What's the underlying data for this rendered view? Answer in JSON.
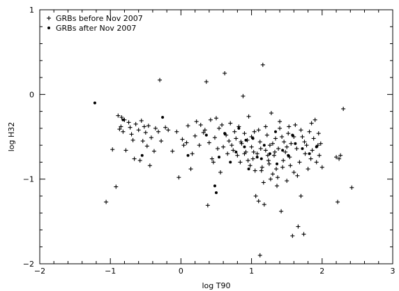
{
  "chart_data": {
    "type": "scatter",
    "title": "",
    "xlabel": "log T90",
    "ylabel": "log H32",
    "xlim": [
      -2,
      3
    ],
    "ylim": [
      -2,
      1
    ],
    "x_ticks": [
      -2,
      -1,
      0,
      1,
      2,
      3
    ],
    "y_ticks": [
      -2,
      -1,
      0,
      1
    ],
    "x_tick_labels": [
      "−2",
      "−1",
      "0",
      "1",
      "2",
      "3"
    ],
    "y_tick_labels": [
      "−2",
      "−1",
      "0",
      "1"
    ],
    "legend_position": "top-left",
    "series": [
      {
        "name": "GRBs before Nov 2007",
        "marker": "plus",
        "points": [
          [
            -1.06,
            -1.27
          ],
          [
            -0.97,
            -0.65
          ],
          [
            -0.92,
            -1.09
          ],
          [
            -0.89,
            -0.25
          ],
          [
            -0.87,
            -0.41
          ],
          [
            -0.85,
            -0.38
          ],
          [
            -0.84,
            -0.27
          ],
          [
            -0.82,
            -0.44
          ],
          [
            -0.8,
            -0.3
          ],
          [
            -0.78,
            -0.66
          ],
          [
            -0.74,
            -0.33
          ],
          [
            -0.72,
            -0.39
          ],
          [
            -0.7,
            -0.47
          ],
          [
            -0.68,
            -0.54
          ],
          [
            -0.66,
            -0.76
          ],
          [
            -0.64,
            -0.35
          ],
          [
            -0.6,
            -0.42
          ],
          [
            -0.58,
            -0.78
          ],
          [
            -0.56,
            -0.31
          ],
          [
            -0.54,
            -0.55
          ],
          [
            -0.52,
            -0.38
          ],
          [
            -0.5,
            -0.45
          ],
          [
            -0.48,
            -0.61
          ],
          [
            -0.46,
            -0.37
          ],
          [
            -0.44,
            -0.84
          ],
          [
            -0.42,
            -0.51
          ],
          [
            -0.38,
            -0.67
          ],
          [
            -0.36,
            -0.4
          ],
          [
            -0.32,
            -0.44
          ],
          [
            -0.3,
            0.17
          ],
          [
            -0.28,
            -0.55
          ],
          [
            -0.22,
            -0.39
          ],
          [
            -0.18,
            -0.42
          ],
          [
            -0.12,
            -0.67
          ],
          [
            -0.06,
            -0.44
          ],
          [
            -0.03,
            -0.98
          ],
          [
            0.02,
            -0.53
          ],
          [
            0.04,
            -0.6
          ],
          [
            0.08,
            -0.57
          ],
          [
            0.1,
            -0.37
          ],
          [
            0.14,
            -0.88
          ],
          [
            0.16,
            -0.7
          ],
          [
            0.2,
            -0.49
          ],
          [
            0.22,
            -0.32
          ],
          [
            0.26,
            -0.6
          ],
          [
            0.28,
            -0.36
          ],
          [
            0.32,
            -0.45
          ],
          [
            0.34,
            -0.42
          ],
          [
            0.36,
            0.15
          ],
          [
            0.38,
            -1.31
          ],
          [
            0.4,
            -0.57
          ],
          [
            0.42,
            -0.3
          ],
          [
            0.44,
            -0.76
          ],
          [
            0.46,
            -0.8
          ],
          [
            0.48,
            -0.51
          ],
          [
            0.5,
            -0.28
          ],
          [
            0.52,
            -0.64
          ],
          [
            0.54,
            -0.4
          ],
          [
            0.56,
            -0.92
          ],
          [
            0.58,
            -0.36
          ],
          [
            0.6,
            -0.62
          ],
          [
            0.62,
            0.25
          ],
          [
            0.64,
            -0.48
          ],
          [
            0.66,
            -0.7
          ],
          [
            0.68,
            -0.55
          ],
          [
            0.7,
            -0.34
          ],
          [
            0.72,
            -0.6
          ],
          [
            0.74,
            -0.66
          ],
          [
            0.76,
            -0.44
          ],
          [
            0.78,
            -0.52
          ],
          [
            0.8,
            -0.72
          ],
          [
            0.82,
            -0.38
          ],
          [
            0.84,
            -0.8
          ],
          [
            0.86,
            -0.58
          ],
          [
            0.88,
            -0.02
          ],
          [
            0.9,
            -0.46
          ],
          [
            0.92,
            -0.68
          ],
          [
            0.94,
            -0.54
          ],
          [
            0.96,
            -0.26
          ],
          [
            0.98,
            -0.84
          ],
          [
            1.0,
            -0.62
          ],
          [
            1.02,
            -0.76
          ],
          [
            1.04,
            -0.44
          ],
          [
            1.06,
            -1.2
          ],
          [
            1.08,
            -0.7
          ],
          [
            1.1,
            -1.26
          ],
          [
            1.12,
            -0.56
          ],
          [
            1.14,
            -0.9
          ],
          [
            1.16,
            0.35
          ],
          [
            1.18,
            -1.3
          ],
          [
            1.2,
            -0.66
          ],
          [
            1.22,
            -0.48
          ],
          [
            1.24,
            -0.78
          ],
          [
            1.26,
            -0.6
          ],
          [
            1.28,
            -0.22
          ],
          [
            1.3,
            -0.94
          ],
          [
            1.32,
            -0.72
          ],
          [
            1.34,
            -0.52
          ],
          [
            1.36,
            -1.08
          ],
          [
            1.38,
            -0.64
          ],
          [
            1.4,
            -0.4
          ],
          [
            1.42,
            -1.38
          ],
          [
            1.44,
            -0.86
          ],
          [
            1.46,
            -0.56
          ],
          [
            1.48,
            -0.68
          ],
          [
            1.5,
            -1.02
          ],
          [
            1.52,
            -0.46
          ],
          [
            1.54,
            -0.74
          ],
          [
            1.56,
            -0.58
          ],
          [
            1.58,
            -1.67
          ],
          [
            1.6,
            -0.92
          ],
          [
            1.62,
            -0.36
          ],
          [
            1.64,
            -0.64
          ],
          [
            1.66,
            -1.56
          ],
          [
            1.68,
            -0.8
          ],
          [
            1.7,
            -1.2
          ],
          [
            1.72,
            -0.5
          ],
          [
            1.74,
            -1.65
          ],
          [
            1.76,
            -0.7
          ],
          [
            1.78,
            -0.6
          ],
          [
            1.8,
            -0.88
          ],
          [
            1.82,
            -0.44
          ],
          [
            1.84,
            -0.76
          ],
          [
            1.86,
            -0.66
          ],
          [
            1.88,
            -0.52
          ],
          [
            1.9,
            -0.3
          ],
          [
            1.92,
            -0.8
          ],
          [
            1.94,
            -0.6
          ],
          [
            1.96,
            -0.72
          ],
          [
            1.98,
            -0.58
          ],
          [
            2.0,
            -0.86
          ],
          [
            2.2,
            -0.74
          ],
          [
            2.24,
            -0.76
          ],
          [
            2.22,
            -1.27
          ],
          [
            2.26,
            -0.72
          ],
          [
            2.3,
            -0.17
          ],
          [
            2.42,
            -1.1
          ],
          [
            1.12,
            -1.9
          ],
          [
            1.4,
            -0.32
          ],
          [
            1.2,
            -0.38
          ],
          [
            1.1,
            -0.42
          ],
          [
            1.3,
            -0.58
          ],
          [
            1.0,
            -0.5
          ],
          [
            0.9,
            -0.7
          ],
          [
            1.5,
            -0.62
          ],
          [
            1.6,
            -0.5
          ],
          [
            1.7,
            -0.42
          ],
          [
            1.25,
            -0.82
          ],
          [
            1.15,
            -0.86
          ],
          [
            1.05,
            -0.9
          ],
          [
            1.35,
            -0.88
          ],
          [
            1.45,
            -0.78
          ],
          [
            1.55,
            -0.84
          ],
          [
            1.65,
            -0.96
          ],
          [
            0.95,
            -0.78
          ],
          [
            0.85,
            -0.56
          ],
          [
            1.75,
            -0.56
          ],
          [
            1.85,
            -0.34
          ],
          [
            1.95,
            -0.46
          ],
          [
            1.33,
            -0.68
          ],
          [
            1.23,
            -0.72
          ],
          [
            1.13,
            -0.64
          ],
          [
            1.03,
            -0.68
          ],
          [
            1.43,
            -0.5
          ],
          [
            1.53,
            -0.38
          ],
          [
            1.27,
            -1.0
          ],
          [
            1.37,
            -0.98
          ],
          [
            1.17,
            -1.04
          ]
        ]
      },
      {
        "name": "GRBs after Nov 2007",
        "marker": "dot",
        "points": [
          [
            -1.22,
            -0.1
          ],
          [
            -0.82,
            -0.3
          ],
          [
            -0.55,
            -0.72
          ],
          [
            -0.26,
            -0.27
          ],
          [
            0.1,
            -0.72
          ],
          [
            0.36,
            -0.48
          ],
          [
            0.48,
            -1.08
          ],
          [
            0.5,
            -1.16
          ],
          [
            0.54,
            -0.74
          ],
          [
            0.62,
            -0.46
          ],
          [
            0.7,
            -0.8
          ],
          [
            0.78,
            -0.68
          ],
          [
            0.82,
            -0.4
          ],
          [
            0.9,
            -0.62
          ],
          [
            0.96,
            -0.88
          ],
          [
            1.02,
            -0.52
          ],
          [
            1.08,
            -0.74
          ],
          [
            1.18,
            -0.6
          ],
          [
            1.26,
            -0.7
          ],
          [
            1.34,
            -0.44
          ],
          [
            1.44,
            -0.66
          ],
          [
            1.52,
            -0.72
          ],
          [
            1.62,
            -0.58
          ],
          [
            1.72,
            -0.64
          ],
          [
            1.82,
            -0.7
          ],
          [
            1.92,
            -0.62
          ],
          [
            1.58,
            -0.48
          ],
          [
            1.36,
            -0.82
          ],
          [
            1.14,
            -0.76
          ],
          [
            0.92,
            -0.54
          ]
        ]
      }
    ]
  }
}
